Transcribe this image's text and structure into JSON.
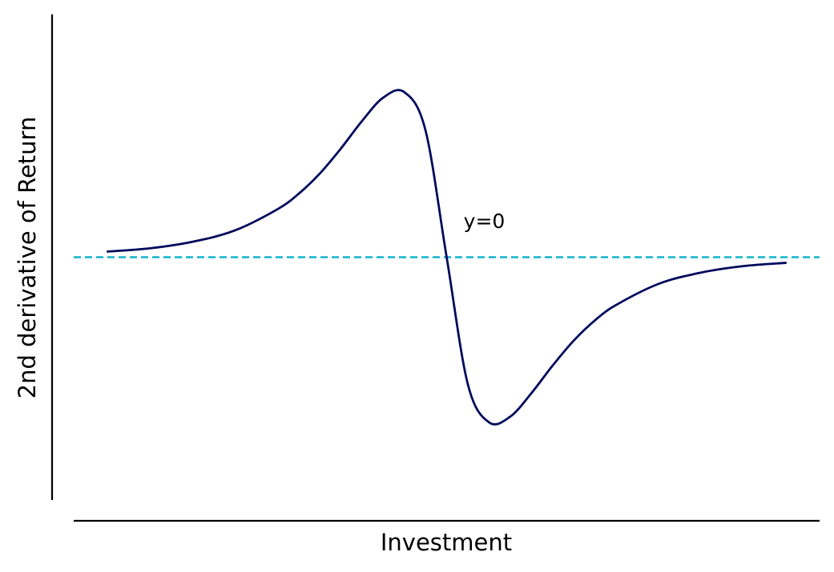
{
  "chart_data": {
    "type": "line",
    "title": "",
    "xlabel": "Investment",
    "ylabel": "2nd derivative of Return",
    "xlim": [
      -4.4,
      4.4
    ],
    "ylim": [
      -0.3,
      0.3
    ],
    "grid": false,
    "ticks_visible": false,
    "series": [
      {
        "color": "#000a5c",
        "x": [
          -4,
          -3.5,
          -3,
          -2.5,
          -2,
          -1.75,
          -1.5,
          -1.25,
          -1,
          -0.75,
          -0.5,
          -0.25,
          0,
          0.25,
          0.5,
          0.75,
          1,
          1.25,
          1.5,
          1.75,
          2,
          2.5,
          3,
          3.5,
          4
        ],
        "values": [
          0.007,
          0.011,
          0.019,
          0.033,
          0.059,
          0.078,
          0.103,
          0.134,
          0.168,
          0.197,
          0.204,
          0.157,
          0.0,
          -0.157,
          -0.204,
          -0.197,
          -0.168,
          -0.134,
          -0.103,
          -0.078,
          -0.059,
          -0.033,
          -0.019,
          -0.011,
          -0.007
        ]
      }
    ],
    "reference_lines": [
      {
        "axis": "y",
        "value": 0,
        "color": "#12b4cc",
        "style": "dashed"
      }
    ],
    "annotations": [
      {
        "text": "y=0",
        "x": 0.2,
        "y": 0.036
      }
    ]
  }
}
